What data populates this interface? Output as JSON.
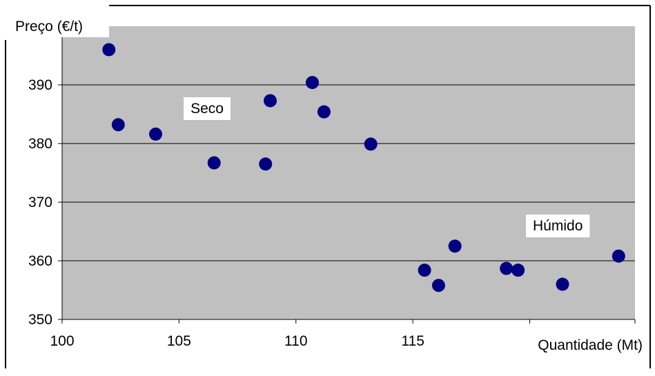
{
  "chart_data": {
    "type": "scatter",
    "title": "",
    "xlabel": "Quantidade (Mt)",
    "ylabel": "Preço (€/t)",
    "xlim": [
      100,
      124.5
    ],
    "ylim": [
      350,
      400
    ],
    "x_ticks": [
      100,
      105,
      110,
      115
    ],
    "y_ticks": [
      350,
      360,
      370,
      380,
      390
    ],
    "grid": "horizontal",
    "marker_color": "#000080",
    "plot_background": "#c0c0c0",
    "annotations": [
      {
        "text": "Seco",
        "x": 106.2,
        "y": 386
      },
      {
        "text": "Húmido",
        "x": 121.2,
        "y": 366
      }
    ],
    "points": [
      {
        "x": 102.0,
        "y": 396.0
      },
      {
        "x": 102.4,
        "y": 383.2
      },
      {
        "x": 104.0,
        "y": 381.6
      },
      {
        "x": 106.5,
        "y": 376.7
      },
      {
        "x": 108.7,
        "y": 376.5
      },
      {
        "x": 108.9,
        "y": 387.3
      },
      {
        "x": 110.7,
        "y": 390.4
      },
      {
        "x": 111.2,
        "y": 385.4
      },
      {
        "x": 113.2,
        "y": 379.9
      },
      {
        "x": 115.5,
        "y": 358.4
      },
      {
        "x": 116.1,
        "y": 355.8
      },
      {
        "x": 116.8,
        "y": 362.5
      },
      {
        "x": 119.0,
        "y": 358.7
      },
      {
        "x": 119.5,
        "y": 358.4
      },
      {
        "x": 121.4,
        "y": 356.0
      },
      {
        "x": 123.8,
        "y": 360.8
      }
    ]
  }
}
